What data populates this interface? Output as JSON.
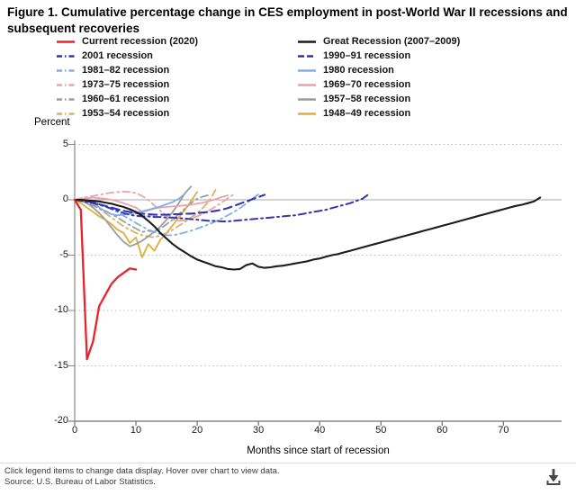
{
  "footer": {
    "note": "Click legend items to change data display. Hover over chart to view data.",
    "source": "Source: U.S. Bureau of Labor Statistics."
  },
  "chart_data": {
    "type": "line",
    "title": "Figure 1. Cumulative percentage change in CES employment in post-World War II recessions and subsequent recoveries",
    "xlabel": "Months since start of recession",
    "ylabel": "Percent",
    "xlim": [
      0,
      79.5
    ],
    "ylim": [
      -20,
      5
    ],
    "x_ticks": [
      0,
      10,
      20,
      30,
      40,
      50,
      60,
      70
    ],
    "y_ticks": [
      5,
      0,
      -5,
      -10,
      -15,
      -20
    ],
    "grid": "horizontal dotted gridlines; solid light line at 0; legend on top in two columns; x unit = months after recession start, monthly values from month 0",
    "series": [
      {
        "id": "current-2020",
        "name": "Current recession (2020)",
        "color": "#e8232b",
        "line_style": "solid",
        "line_width": 2.3,
        "values": [
          0,
          -0.9,
          -14.4,
          -12.8,
          -9.6,
          -8.6,
          -7.6,
          -7.0,
          -6.6,
          -6.2,
          -6.3
        ]
      },
      {
        "id": "great-recession",
        "name": "Great Recession (2007–2009)",
        "color": "#1c1c1c",
        "line_style": "solid",
        "line_width": 2.1,
        "values": [
          0,
          0,
          -0.05,
          -0.1,
          -0.15,
          -0.25,
          -0.35,
          -0.5,
          -0.65,
          -0.85,
          -1.1,
          -1.45,
          -1.9,
          -2.4,
          -3.0,
          -3.5,
          -4.0,
          -4.4,
          -4.75,
          -5.1,
          -5.4,
          -5.6,
          -5.8,
          -6.0,
          -6.1,
          -6.25,
          -6.3,
          -6.25,
          -5.9,
          -5.75,
          -6.05,
          -6.15,
          -6.1,
          -6.0,
          -5.95,
          -5.85,
          -5.75,
          -5.65,
          -5.55,
          -5.4,
          -5.3,
          -5.15,
          -5.0,
          -4.9,
          -4.75,
          -4.6,
          -4.45,
          -4.3,
          -4.15,
          -4.0,
          -3.85,
          -3.7,
          -3.55,
          -3.4,
          -3.25,
          -3.1,
          -2.95,
          -2.8,
          -2.65,
          -2.5,
          -2.35,
          -2.2,
          -2.05,
          -1.9,
          -1.75,
          -1.6,
          -1.45,
          -1.3,
          -1.15,
          -1.0,
          -0.85,
          -0.7,
          -0.55,
          -0.45,
          -0.3,
          -0.15,
          0.2
        ]
      },
      {
        "id": "recession-2001",
        "name": "2001 recession",
        "color": "#3535ae",
        "line_style": "dash-dot",
        "line_width": 2.0,
        "values": [
          0,
          -0.1,
          -0.2,
          -0.3,
          -0.45,
          -0.6,
          -0.8,
          -1.0,
          -1.2,
          -1.35,
          -1.45,
          -1.5,
          -1.5,
          -1.55,
          -1.55,
          -1.6,
          -1.6,
          -1.65,
          -1.7,
          -1.75,
          -1.8,
          -1.85,
          -1.9,
          -1.9,
          -1.95,
          -1.95,
          -1.9,
          -1.85,
          -1.8,
          -1.75,
          -1.7,
          -1.65,
          -1.6,
          -1.55,
          -1.5,
          -1.45,
          -1.4,
          -1.3,
          -1.2,
          -1.1,
          -1.0,
          -0.9,
          -0.75,
          -0.6,
          -0.45,
          -0.3,
          -0.1,
          0.1,
          0.5
        ]
      },
      {
        "id": "recession-1990-91",
        "name": "1990–91 recession",
        "color": "#3535ae",
        "line_style": "dashed",
        "line_width": 2.1,
        "values": [
          0,
          -0.05,
          -0.15,
          -0.25,
          -0.4,
          -0.55,
          -0.7,
          -0.85,
          -1.0,
          -1.1,
          -1.2,
          -1.25,
          -1.3,
          -1.35,
          -1.35,
          -1.35,
          -1.3,
          -1.3,
          -1.25,
          -1.25,
          -1.2,
          -1.15,
          -1.1,
          -1.0,
          -0.9,
          -0.75,
          -0.55,
          -0.35,
          -0.15,
          0.05,
          0.25,
          0.45
        ]
      },
      {
        "id": "recession-1981-82",
        "name": "1981–82 recession",
        "color": "#82aee8",
        "line_style": "dash-dot",
        "line_width": 1.8,
        "values": [
          0,
          0,
          -0.1,
          -0.2,
          -0.4,
          -0.6,
          -0.85,
          -1.1,
          -1.45,
          -1.75,
          -2.1,
          -2.4,
          -2.7,
          -2.9,
          -3.1,
          -3.2,
          -3.2,
          -3.1,
          -2.95,
          -2.8,
          -2.6,
          -2.4,
          -2.2,
          -1.95,
          -1.7,
          -1.4,
          -1.1,
          -0.75,
          -0.35,
          0.1,
          0.5
        ]
      },
      {
        "id": "recession-1980",
        "name": "1980 recession",
        "color": "#82aee8",
        "line_style": "solid",
        "line_width": 1.8,
        "values": [
          0,
          0,
          -0.05,
          -0.3,
          -0.7,
          -1.05,
          -1.3,
          -1.4,
          -1.35,
          -1.25,
          -1.15,
          -1.05,
          -0.9,
          -0.75,
          -0.6,
          -0.4,
          -0.2,
          0.1,
          0.55
        ]
      },
      {
        "id": "recession-1973-75",
        "name": "1973–75 recession",
        "color": "#e9a3aa",
        "line_style": "dash-dot",
        "line_width": 1.8,
        "values": [
          0,
          0.15,
          0.25,
          0.35,
          0.45,
          0.55,
          0.65,
          0.7,
          0.75,
          0.7,
          0.6,
          0.35,
          0,
          -0.5,
          -1.0,
          -1.45,
          -1.75,
          -1.9,
          -1.85,
          -1.7,
          -1.5,
          -1.25,
          -0.95,
          -0.6,
          -0.25,
          0.15,
          0.5
        ]
      },
      {
        "id": "recession-1969-70",
        "name": "1969–70 recession",
        "color": "#e9a3aa",
        "line_style": "solid",
        "line_width": 1.8,
        "values": [
          0,
          0.1,
          0.15,
          0.2,
          0.15,
          0.1,
          0,
          -0.15,
          -0.3,
          -0.5,
          -0.7,
          -1.1,
          -0.95,
          -0.8,
          -0.7,
          -0.65,
          -0.6,
          -0.55,
          -0.5,
          -0.45,
          -0.35,
          -0.25,
          -0.1,
          0.05,
          0.25,
          0.4
        ]
      },
      {
        "id": "recession-1960-61",
        "name": "1960–61 recession",
        "color": "#9c9c9c",
        "line_style": "dash-dot",
        "line_width": 1.8,
        "values": [
          0,
          -0.1,
          -0.3,
          -0.5,
          -0.75,
          -1.0,
          -1.3,
          -1.6,
          -1.95,
          -2.3,
          -2.6,
          -2.9,
          -2.8,
          -2.9,
          -2.6,
          -2.2,
          -1.8,
          -1.3,
          -0.8,
          -0.3,
          0.1,
          0.3,
          0.45
        ]
      },
      {
        "id": "recession-1957-58",
        "name": "1957–58 recession",
        "color": "#9c9c9c",
        "line_style": "solid",
        "line_width": 1.8,
        "values": [
          0,
          -0.1,
          -0.3,
          -0.7,
          -1.2,
          -1.8,
          -2.5,
          -3.2,
          -3.8,
          -4.2,
          -4.0,
          -3.7,
          -3.3,
          -2.9,
          -2.4,
          -1.8,
          -1.1,
          -0.3,
          0.6,
          1.2
        ]
      },
      {
        "id": "recession-1953-54",
        "name": "1953–54 recession",
        "color": "#d8b269",
        "line_style": "dash-dot",
        "line_width": 1.8,
        "values": [
          0,
          -0.1,
          -0.3,
          -0.5,
          -0.8,
          -1.2,
          -1.6,
          -2.0,
          -2.4,
          -2.7,
          -3.0,
          -3.2,
          -3.3,
          -3.4,
          -3.2,
          -3.0,
          -2.7,
          -2.35,
          -2.0,
          -1.6,
          -1.2,
          -0.7,
          -0.1,
          0.9
        ]
      },
      {
        "id": "recession-1948-49",
        "name": "1948–49 recession",
        "color": "#dfaf3e",
        "line_style": "solid",
        "line_width": 1.8,
        "values": [
          0,
          -0.3,
          -0.7,
          -1.1,
          -1.5,
          -1.8,
          -2.2,
          -2.7,
          -3.0,
          -3.9,
          -3.4,
          -5.2,
          -4.0,
          -4.6,
          -3.6,
          -3.0,
          -2.3,
          -1.6,
          -0.9,
          -0.1,
          0.7
        ]
      }
    ]
  }
}
